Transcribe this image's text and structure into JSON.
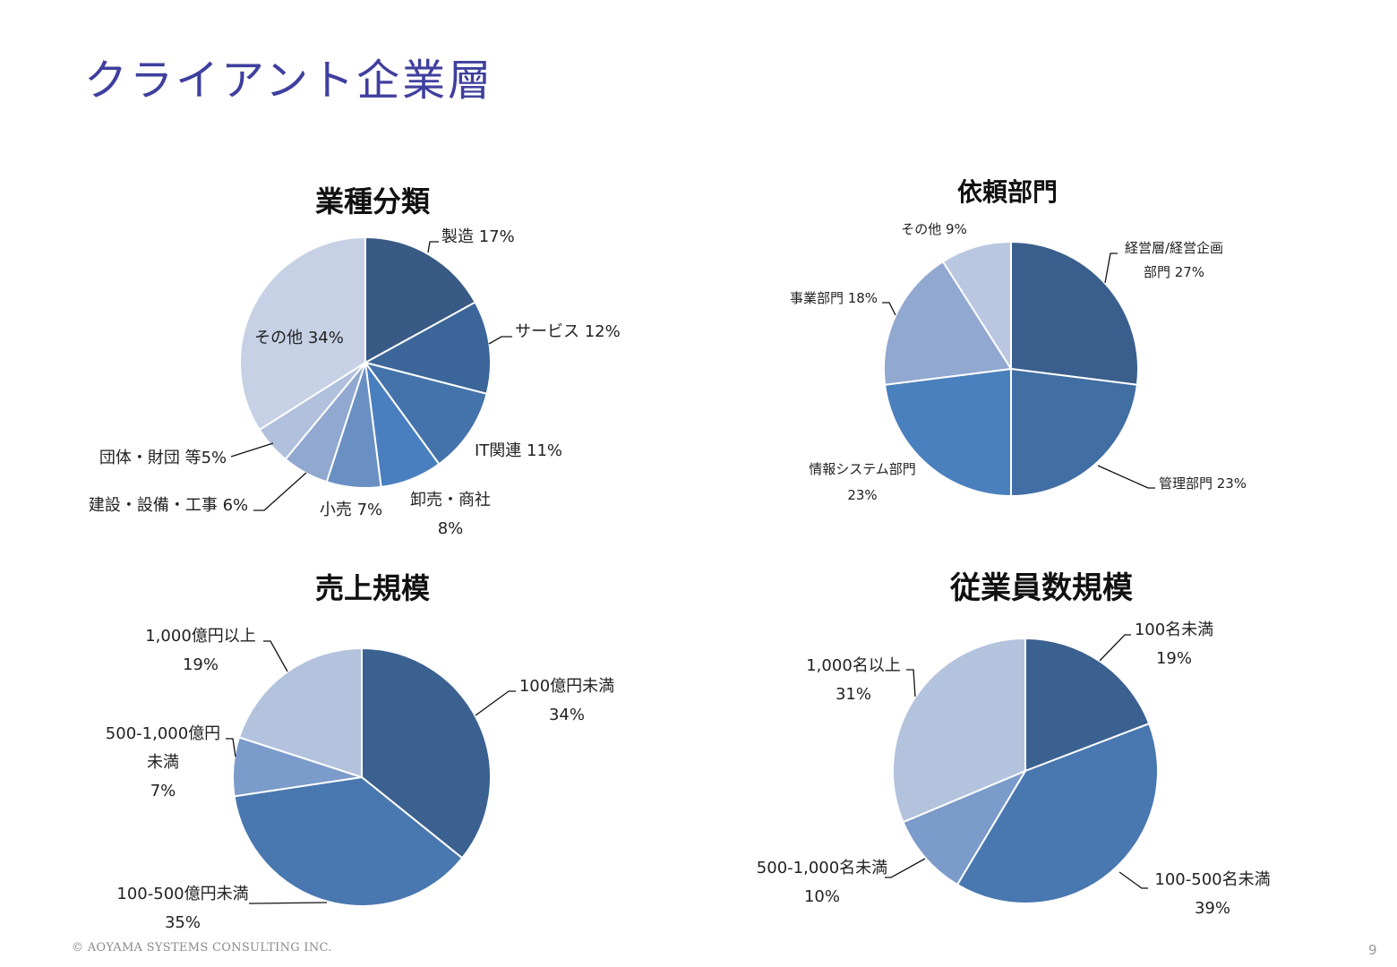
{
  "page": {
    "title": "クライアント企業層",
    "footer": "© AOYAMA SYSTEMS CONSULTING INC.",
    "page_number": "9"
  },
  "chart_data": [
    {
      "id": "industry",
      "type": "pie",
      "title": "業種分類",
      "categories": [
        "製造",
        "サービス",
        "IT関連",
        "卸売・商社",
        "小売",
        "建設・設備・工事",
        "団体・財団 等",
        "その他"
      ],
      "values": [
        17,
        12,
        11,
        8,
        7,
        6,
        5,
        34
      ],
      "colors": [
        "#385a84",
        "#3c6699",
        "#4473ab",
        "#4a7fbf",
        "#6a8fc3",
        "#91a8d0",
        "#b0c0dd",
        "#c6d1e5"
      ],
      "labels": [
        "製造 17%",
        "サービス 12%",
        "IT関連 11%",
        "卸売・商社\n8%",
        "小売 7%",
        "建設・設備・工事 6%",
        "団体・財団 等5%",
        "その他 34%"
      ]
    },
    {
      "id": "department",
      "type": "pie",
      "title": "依頼部門",
      "categories": [
        "経営層/経営企画部門",
        "管理部門",
        "情報システム部門",
        "事業部門",
        "その他"
      ],
      "values": [
        27,
        23,
        23,
        18,
        9
      ],
      "colors": [
        "#3a5f8d",
        "#416ea3",
        "#4a80bd",
        "#91a8d1",
        "#b9c7e0"
      ],
      "labels": [
        "経営層/経営企画\n部門 27%",
        "管理部門 23%",
        "情報システム部門\n23%",
        "事業部門 18%",
        "その他 9%"
      ]
    },
    {
      "id": "revenue",
      "type": "pie",
      "title": "売上規模",
      "categories": [
        "100億円未満",
        "100-500億円未満",
        "500-1,000億円未満",
        "1,000億円以上"
      ],
      "values": [
        34,
        35,
        7,
        19
      ],
      "colors": [
        "#3b6190",
        "#4977b0",
        "#7b9bca",
        "#b3c3de"
      ],
      "labels": [
        "100億円未満\n34%",
        "100-500億円未満\n35%",
        "500-1,000億円\n未満\n7%",
        "1,000億円以上\n19%"
      ]
    },
    {
      "id": "employees",
      "type": "pie",
      "title": "従業員数規模",
      "categories": [
        "100名未満",
        "100-500名未満",
        "500-1,000名未満",
        "1,000名以上"
      ],
      "values": [
        19,
        39,
        10,
        31
      ],
      "colors": [
        "#3b6190",
        "#4977b0",
        "#7b9bca",
        "#b3c3de"
      ],
      "labels": [
        "100名未満\n19%",
        "100-500名未満\n39%",
        "500-1,000名未満\n10%",
        "1,000名以上\n31%"
      ]
    }
  ]
}
